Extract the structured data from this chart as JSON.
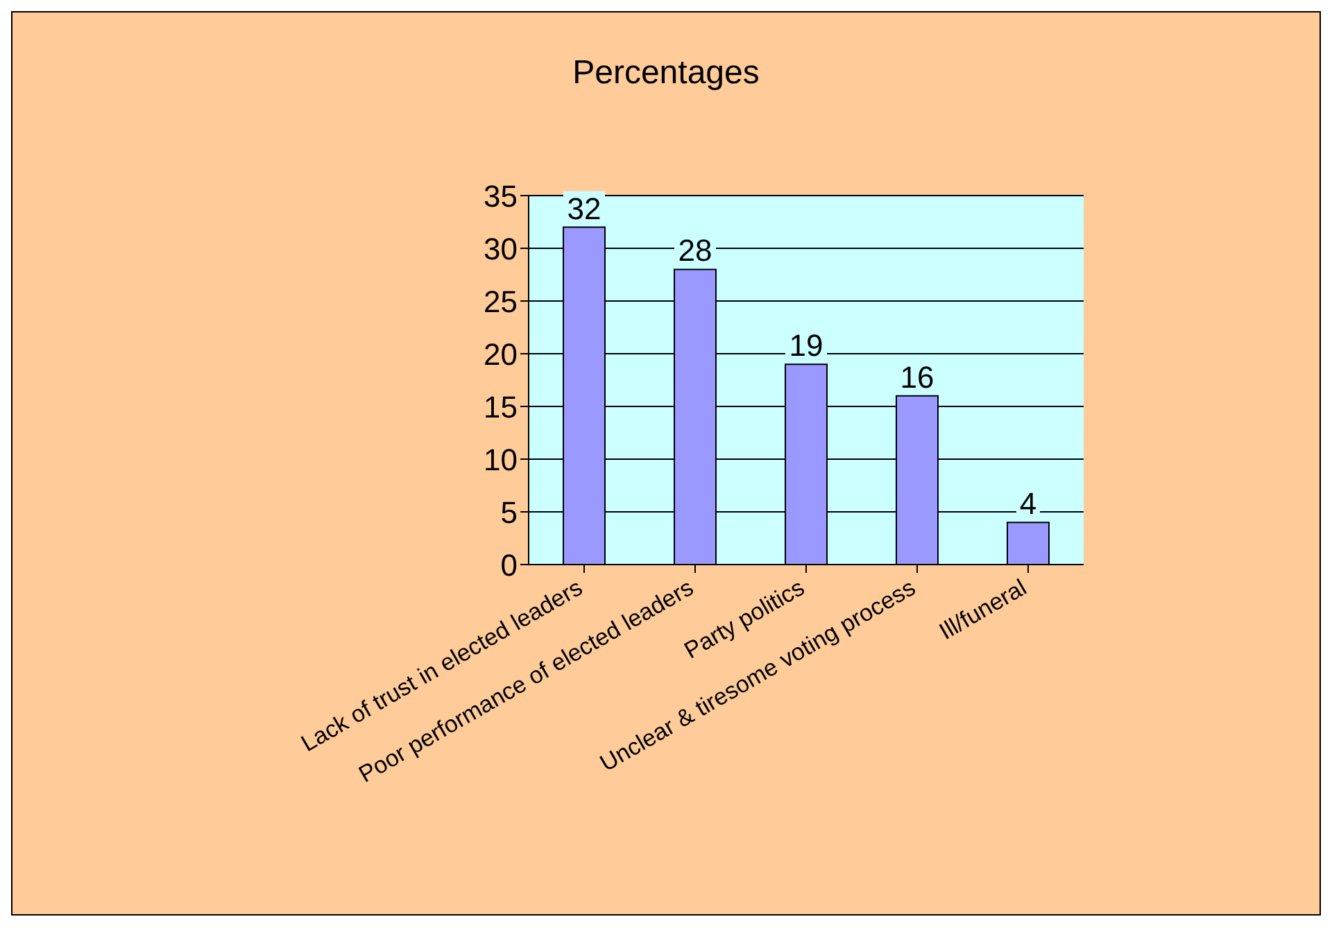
{
  "chart_data": {
    "type": "bar",
    "title": "Percentages",
    "categories": [
      "Lack of trust in elected leaders",
      "Poor performance of elected leaders",
      "Party politics",
      "Unclear & tiresome voting process",
      "Ill/funeral"
    ],
    "values": [
      32,
      28,
      19,
      16,
      4
    ],
    "color": "#9999ff",
    "ylim": [
      0,
      35
    ],
    "yticks": [
      0,
      5,
      10,
      15,
      20,
      25,
      30,
      35
    ],
    "grid": "y",
    "data_labels": true
  }
}
